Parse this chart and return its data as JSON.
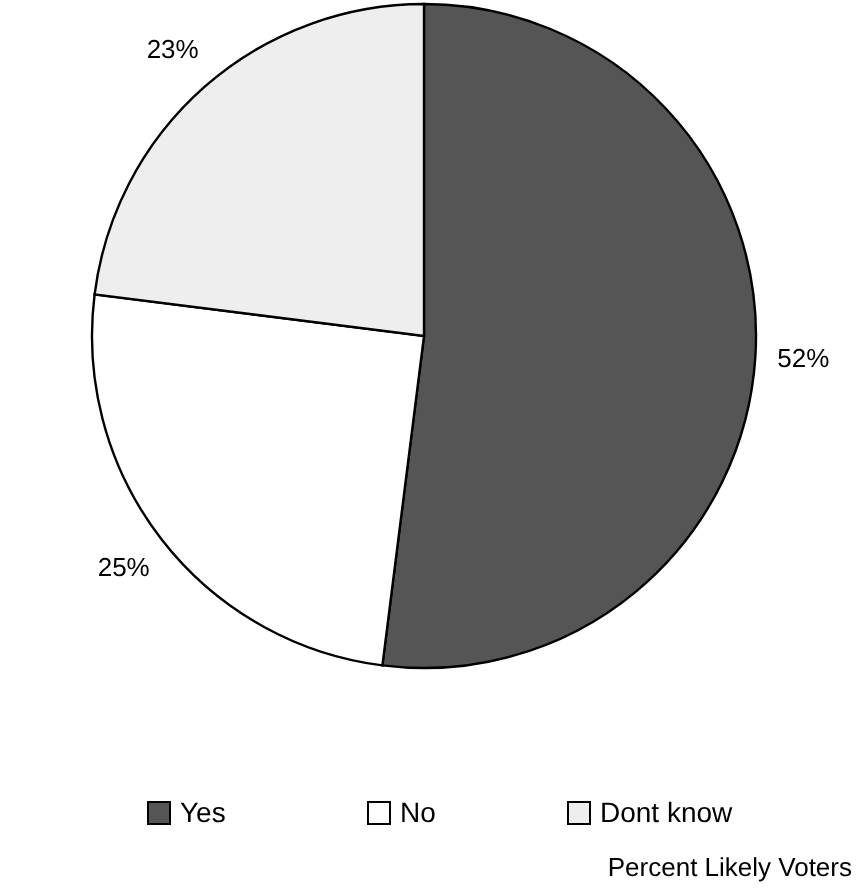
{
  "chart_data": {
    "type": "pie",
    "categories": [
      "Yes",
      "No",
      "Dont know"
    ],
    "values": [
      52,
      25,
      23
    ],
    "colors": [
      "#555555",
      "#ffffff",
      "#eeeeee"
    ],
    "value_labels": [
      "52%",
      "25%",
      "23%"
    ],
    "legend": "bottom",
    "annotations": [
      "Percent Likely Voters"
    ]
  }
}
